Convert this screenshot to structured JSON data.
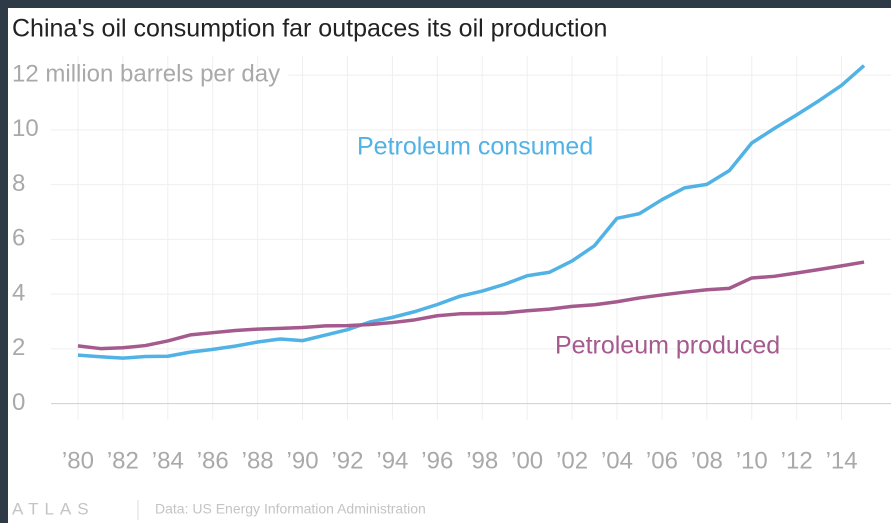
{
  "chart_data": {
    "type": "line",
    "title": "China's oil consumption far outpaces its oil production",
    "x": [
      1980,
      1981,
      1982,
      1983,
      1984,
      1985,
      1986,
      1987,
      1988,
      1989,
      1990,
      1991,
      1992,
      1993,
      1994,
      1995,
      1996,
      1997,
      1998,
      1999,
      2000,
      2001,
      2002,
      2003,
      2004,
      2005,
      2006,
      2007,
      2008,
      2009,
      2010,
      2011,
      2012,
      2013,
      2014,
      2015
    ],
    "series": [
      {
        "name": "Petroleum consumed",
        "color": "#51b2e5",
        "values": [
          1.77,
          1.71,
          1.66,
          1.72,
          1.73,
          1.88,
          1.98,
          2.1,
          2.25,
          2.36,
          2.3,
          2.5,
          2.7,
          2.98,
          3.15,
          3.36,
          3.62,
          3.92,
          4.11,
          4.36,
          4.67,
          4.8,
          5.21,
          5.77,
          6.77,
          6.94,
          7.45,
          7.88,
          8.01,
          8.51,
          9.52,
          10.05,
          10.55,
          11.07,
          11.63,
          12.35
        ]
      },
      {
        "name": "Petroleum produced",
        "color": "#a55a8e",
        "values": [
          2.11,
          2.01,
          2.04,
          2.12,
          2.29,
          2.51,
          2.59,
          2.67,
          2.72,
          2.75,
          2.78,
          2.84,
          2.85,
          2.89,
          2.96,
          3.06,
          3.21,
          3.28,
          3.29,
          3.31,
          3.39,
          3.45,
          3.55,
          3.61,
          3.72,
          3.86,
          3.97,
          4.07,
          4.16,
          4.21,
          4.59,
          4.65,
          4.77,
          4.9,
          5.03,
          5.17
        ]
      }
    ],
    "xlim": [
      1978.8,
      2016.2
    ],
    "xticks": [
      {
        "value": 1980,
        "label": "’80"
      },
      {
        "value": 1982,
        "label": "’82"
      },
      {
        "value": 1984,
        "label": "’84"
      },
      {
        "value": 1986,
        "label": "’86"
      },
      {
        "value": 1988,
        "label": "’88"
      },
      {
        "value": 1990,
        "label": "’90"
      },
      {
        "value": 1992,
        "label": "’92"
      },
      {
        "value": 1994,
        "label": "’94"
      },
      {
        "value": 1996,
        "label": "’96"
      },
      {
        "value": 1998,
        "label": "’98"
      },
      {
        "value": 2000,
        "label": "’00"
      },
      {
        "value": 2002,
        "label": "’02"
      },
      {
        "value": 2004,
        "label": "’04"
      },
      {
        "value": 2006,
        "label": "’06"
      },
      {
        "value": 2008,
        "label": "’08"
      },
      {
        "value": 2010,
        "label": "’10"
      },
      {
        "value": 2012,
        "label": "’12"
      },
      {
        "value": 2014,
        "label": "’14"
      }
    ],
    "ylim": [
      -0.6,
      12.7
    ],
    "yticks": [
      0,
      2,
      4,
      6,
      8,
      10,
      {
        "value": 12,
        "label": "12 million barrels per day"
      }
    ],
    "grid": true,
    "logo": "ATLAS",
    "source": "Data: US Energy Information Administration"
  }
}
